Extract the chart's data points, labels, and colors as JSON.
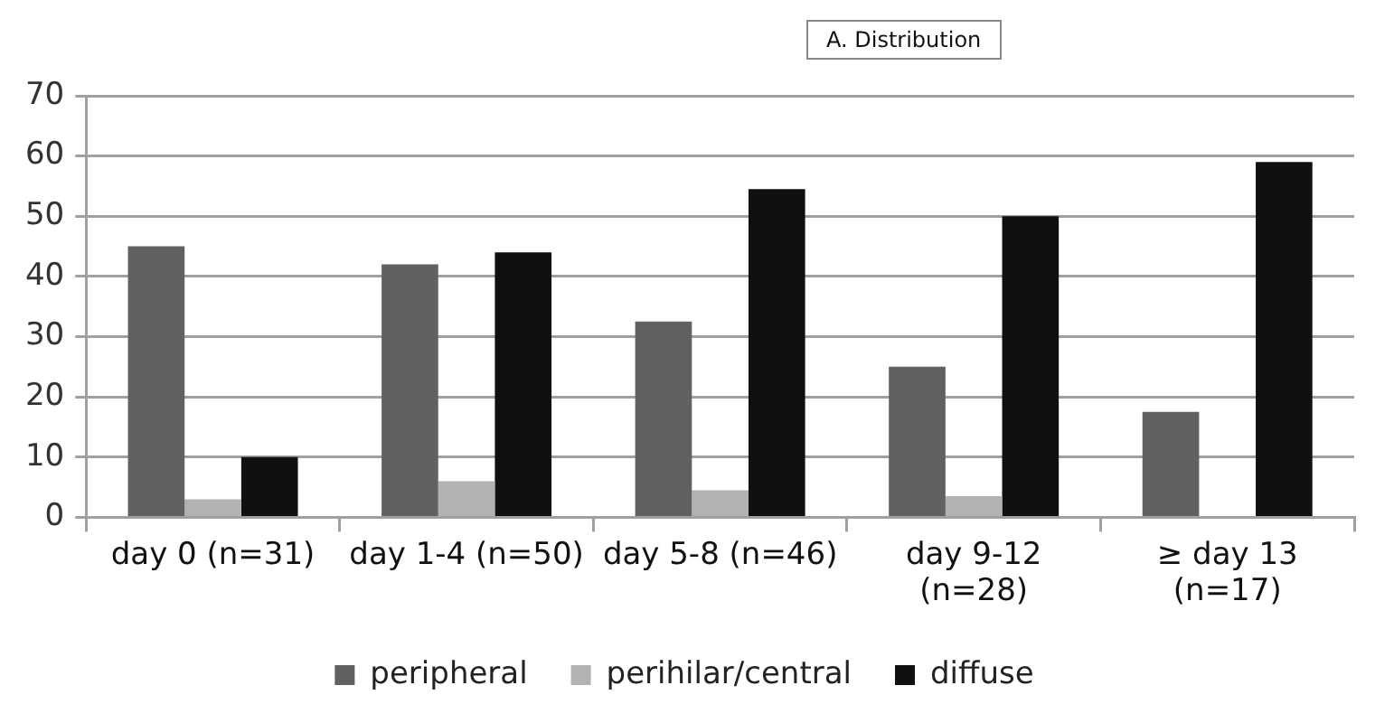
{
  "chart_data": {
    "type": "bar",
    "title": "A. Distribution",
    "categories": [
      "day 0 (n=31)",
      "day 1-4 (n=50)",
      "day 5-8 (n=46)",
      "day 9-12 (n=28)",
      "≥ day 13 (n=17)"
    ],
    "series": [
      {
        "name": "peripheral",
        "color": "#616161",
        "values": [
          45,
          42,
          32.5,
          25,
          17.5
        ]
      },
      {
        "name": "perihilar/central",
        "color": "#b2b2b2",
        "values": [
          3,
          6,
          4.5,
          3.5,
          0
        ]
      },
      {
        "name": "diffuse",
        "color": "#101010",
        "values": [
          10,
          44,
          54.5,
          50,
          59
        ]
      }
    ],
    "ylim": [
      0,
      70
    ],
    "yticks": [
      0,
      10,
      20,
      30,
      40,
      50,
      60,
      70
    ],
    "grid": "y",
    "legend": "bottom"
  }
}
